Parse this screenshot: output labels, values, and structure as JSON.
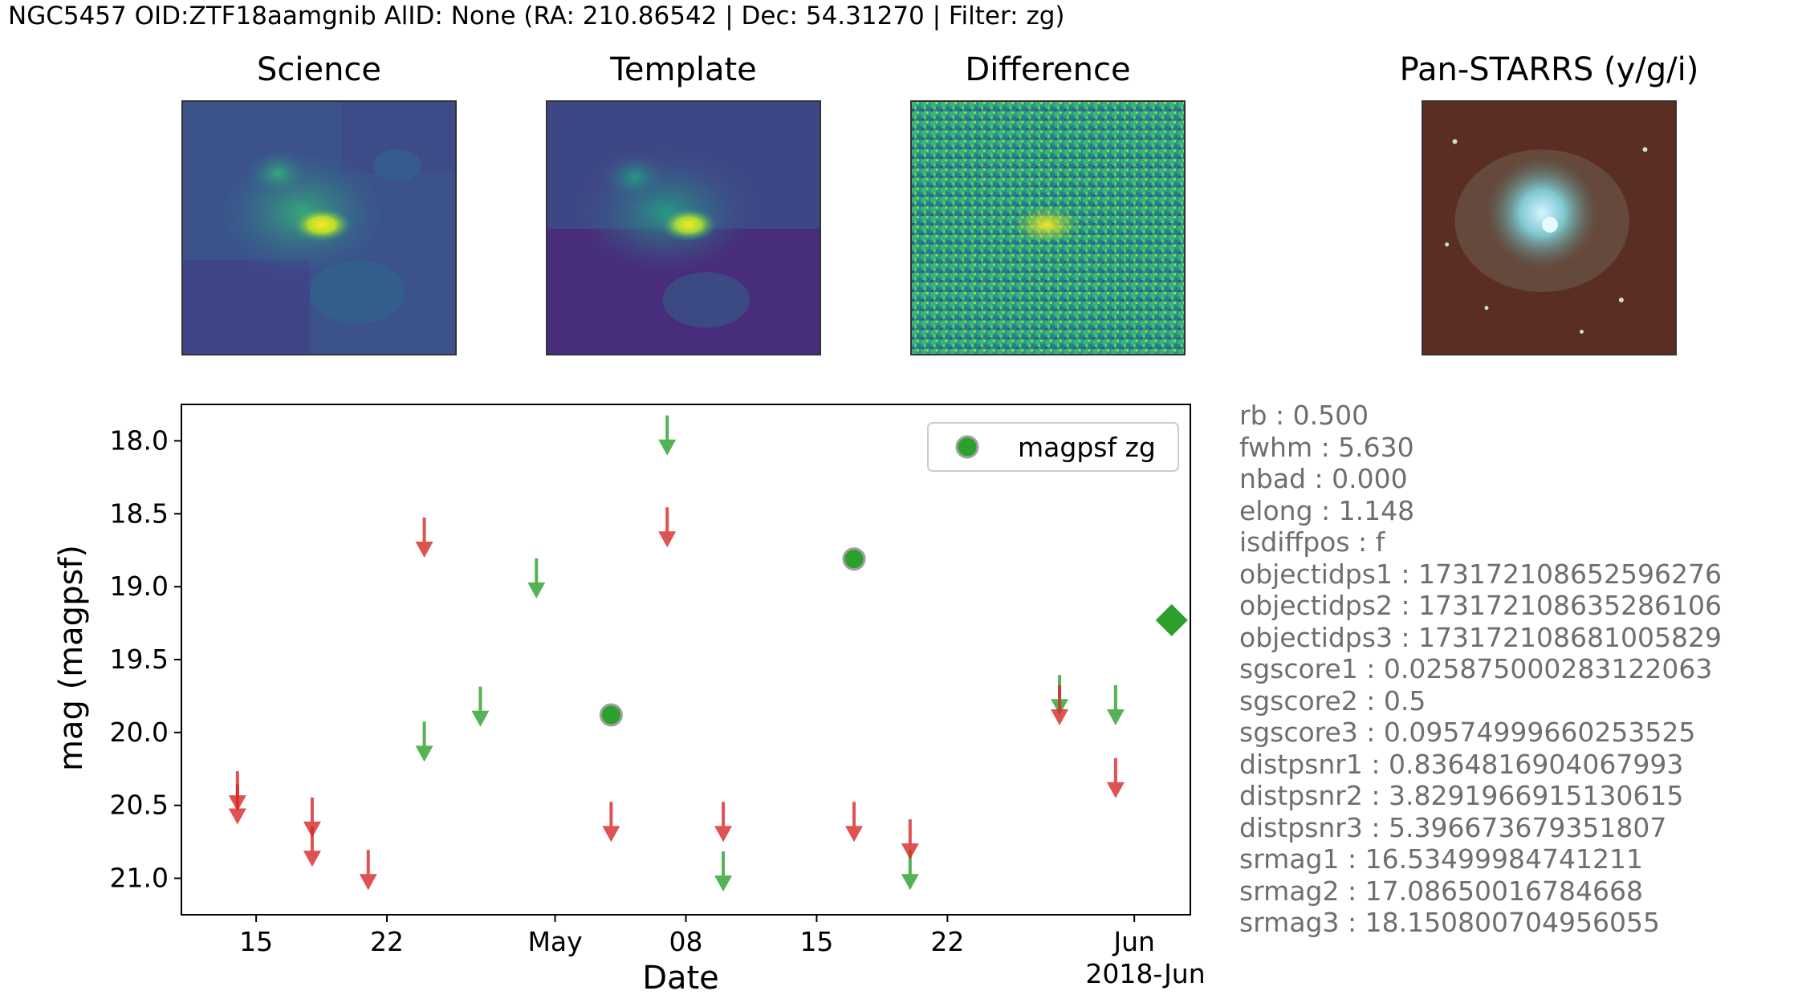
{
  "header": {
    "title": "NGC5457 OID:ZTF18aamgnib AlID: None (RA: 210.86542 | Dec: 54.31270 | Filter: zg)"
  },
  "cutouts": [
    {
      "id": "science",
      "title": "Science"
    },
    {
      "id": "template",
      "title": "Template"
    },
    {
      "id": "difference",
      "title": "Difference"
    },
    {
      "id": "panstarrs",
      "title": "Pan-STARRS (y/g/i)"
    }
  ],
  "colors": {
    "green": "#2ca02c",
    "red": "#d62728",
    "meta_text": "#6e6e6e"
  },
  "chart_data": {
    "type": "scatter",
    "title": "",
    "xlabel": "Date",
    "ylabel": "mag (magpsf)",
    "ylim": [
      21.25,
      17.75
    ],
    "y_inverted": true,
    "xlim": [
      "2018-04-11",
      "2018-06-04"
    ],
    "x_ticks": [
      "15",
      "22",
      "May",
      "08",
      "15",
      "22",
      "Jun"
    ],
    "x_tick_dates": [
      "2018-04-15",
      "2018-04-22",
      "2018-05-01",
      "2018-05-08",
      "2018-05-15",
      "2018-05-22",
      "2018-06-01"
    ],
    "x_offset_label": "2018-Jun",
    "y_ticks": [
      "18.0",
      "18.5",
      "19.0",
      "19.5",
      "20.0",
      "20.5",
      "21.0"
    ],
    "y_tick_values": [
      18.0,
      18.5,
      19.0,
      19.5,
      20.0,
      20.5,
      21.0
    ],
    "legend": {
      "position": "top-right",
      "entries": [
        "magpsf zg"
      ]
    },
    "series": [
      {
        "name": "magpsf zg",
        "kind": "detection",
        "color": "#2ca02c",
        "points": [
          {
            "date": "2018-05-04",
            "mag": 19.88
          },
          {
            "date": "2018-05-17",
            "mag": 18.81
          }
        ]
      },
      {
        "name": "upper limits zg",
        "kind": "upper_limit",
        "color": "#2ca02c",
        "points": [
          {
            "date": "2018-04-24",
            "mag": 20.19
          },
          {
            "date": "2018-04-27",
            "mag": 19.95
          },
          {
            "date": "2018-04-30",
            "mag": 19.07
          },
          {
            "date": "2018-05-07",
            "mag": 18.09
          },
          {
            "date": "2018-05-10",
            "mag": 21.08
          },
          {
            "date": "2018-05-20",
            "mag": 21.07
          },
          {
            "date": "2018-05-28",
            "mag": 19.87
          },
          {
            "date": "2018-05-31",
            "mag": 19.94
          }
        ]
      },
      {
        "name": "upper limits zr",
        "kind": "upper_limit",
        "color": "#d62728",
        "points": [
          {
            "date": "2018-04-14",
            "mag": 20.53
          },
          {
            "date": "2018-04-14",
            "mag": 20.62
          },
          {
            "date": "2018-04-18",
            "mag": 20.71
          },
          {
            "date": "2018-04-18",
            "mag": 20.91
          },
          {
            "date": "2018-04-21",
            "mag": 21.07
          },
          {
            "date": "2018-04-24",
            "mag": 18.79
          },
          {
            "date": "2018-05-04",
            "mag": 20.74
          },
          {
            "date": "2018-05-07",
            "mag": 18.72
          },
          {
            "date": "2018-05-10",
            "mag": 20.74
          },
          {
            "date": "2018-05-17",
            "mag": 20.74
          },
          {
            "date": "2018-05-20",
            "mag": 20.86
          },
          {
            "date": "2018-05-28",
            "mag": 19.94
          },
          {
            "date": "2018-05-31",
            "mag": 20.44
          }
        ]
      },
      {
        "name": "latest",
        "kind": "diamond",
        "color": "#2ca02c",
        "points": [
          {
            "date": "2018-06-03",
            "mag": 19.23
          }
        ]
      }
    ]
  },
  "metadata": [
    "rb : 0.500",
    "fwhm : 5.630",
    "nbad : 0.000",
    "elong : 1.148",
    "isdiffpos : f",
    "objectidps1 : 173172108652596276",
    "objectidps2 : 173172108635286106",
    "objectidps3 : 173172108681005829",
    "sgscore1 : 0.025875000283122063",
    "sgscore2 : 0.5",
    "sgscore3 : 0.09574999660253525",
    "distpsnr1 : 0.8364816904067993",
    "distpsnr2 : 3.8291966915130615",
    "distpsnr3 : 5.396673679351807",
    "srmag1 : 16.53499984741211",
    "srmag2 : 17.08650016784668",
    "srmag3 : 18.150800704956055"
  ]
}
